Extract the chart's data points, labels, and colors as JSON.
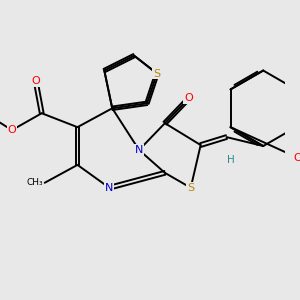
{
  "background_color": "#e8e8e8",
  "atom_colors": {
    "S": "#b8860b",
    "N": "#0000cc",
    "O": "#ff0000",
    "C": "#000000",
    "H": "#2e8b8b"
  },
  "bond_color": "#000000",
  "bond_width": 1.4,
  "figsize": [
    3.0,
    3.0
  ],
  "dpi": 100,
  "xlim": [
    -4.0,
    4.2
  ],
  "ylim": [
    -3.0,
    3.0
  ]
}
